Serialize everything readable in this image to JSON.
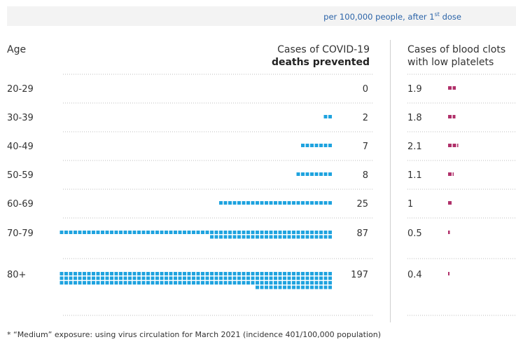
{
  "banner": {
    "text_main": "per 100,000 people, after 1",
    "text_sup": "st",
    "text_tail": " dose"
  },
  "headers": {
    "age": "Age",
    "deaths_line1": "Cases of COVID-19",
    "deaths_line2": "deaths prevented",
    "clots_line1": "Cases of blood clots",
    "clots_line2": "with low platelets"
  },
  "colors": {
    "deaths": "#1fa3df",
    "clots": "#b0306a",
    "divider": "#cfcfcf",
    "dotted": "#bcbcbc"
  },
  "chart_data": {
    "type": "table",
    "categories": [
      "20-29",
      "30-39",
      "40-49",
      "50-59",
      "60-69",
      "70-79",
      "80+"
    ],
    "series": [
      {
        "name": "Cases of COVID-19 deaths prevented",
        "values": [
          0,
          2,
          7,
          8,
          25,
          87,
          197
        ]
      },
      {
        "name": "Cases of blood clots with low platelets",
        "values": [
          1.9,
          1.8,
          2.1,
          1.1,
          1,
          0.5,
          0.4
        ]
      }
    ]
  },
  "rows": [
    {
      "age": "20-29",
      "deaths": "0",
      "clots": "1.9"
    },
    {
      "age": "30-39",
      "deaths": "2",
      "clots": "1.8"
    },
    {
      "age": "40-49",
      "deaths": "7",
      "clots": "2.1"
    },
    {
      "age": "50-59",
      "deaths": "8",
      "clots": "1.1"
    },
    {
      "age": "60-69",
      "deaths": "25",
      "clots": "1"
    },
    {
      "age": "70-79",
      "deaths": "87",
      "clots": "0.5"
    },
    {
      "age": "80+",
      "deaths": "197",
      "clots": "0.4"
    }
  ],
  "footer": "* “Medium” exposure: using virus circulation for March 2021 (incidence 401/100,000 population)"
}
